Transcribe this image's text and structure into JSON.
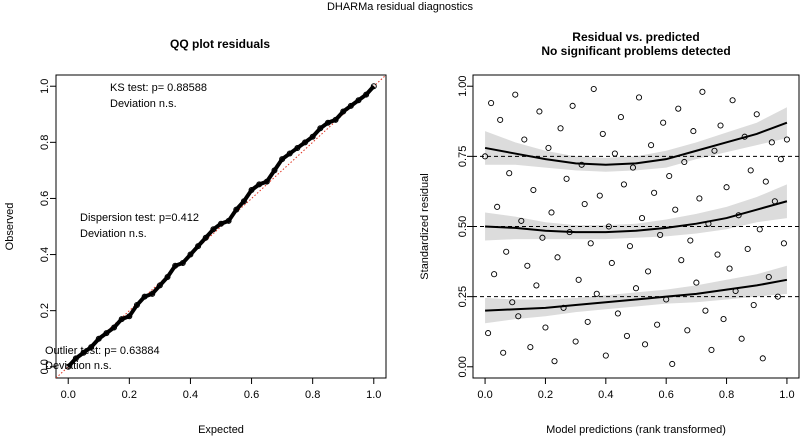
{
  "title": "DHARMa residual diagnostics",
  "chart_data": [
    {
      "type": "qq",
      "title": "QQ plot residuals",
      "xlabel": "Expected",
      "ylabel": "Observed",
      "color": "#000000",
      "reference_color": "#e0301e",
      "xlim": [
        -0.04,
        1.04
      ],
      "ylim": [
        -0.04,
        1.04
      ],
      "xticks": [
        {
          "value": 0,
          "label": "0.0"
        },
        {
          "value": 0.2,
          "label": "0.2"
        },
        {
          "value": 0.4,
          "label": "0.4"
        },
        {
          "value": 0.6,
          "label": "0.6"
        },
        {
          "value": 0.8,
          "label": "0.8"
        },
        {
          "value": 1,
          "label": "1.0"
        }
      ],
      "yticks": [
        {
          "value": 0,
          "label": "0.0"
        },
        {
          "value": 0.2,
          "label": "0.2"
        },
        {
          "value": 0.4,
          "label": "0.4"
        },
        {
          "value": 0.6,
          "label": "0.6"
        },
        {
          "value": 0.8,
          "label": "0.8"
        },
        {
          "value": 1,
          "label": "1.0"
        }
      ],
      "x": [
        0,
        0.025,
        0.05,
        0.075,
        0.1,
        0.125,
        0.15,
        0.175,
        0.2,
        0.225,
        0.25,
        0.275,
        0.3,
        0.325,
        0.35,
        0.375,
        0.4,
        0.425,
        0.45,
        0.475,
        0.5,
        0.525,
        0.55,
        0.575,
        0.6,
        0.625,
        0.65,
        0.675,
        0.7,
        0.725,
        0.75,
        0.775,
        0.8,
        0.825,
        0.85,
        0.875,
        0.9,
        0.925,
        0.95,
        0.975,
        1
      ],
      "y": [
        0,
        0.03,
        0.05,
        0.07,
        0.1,
        0.12,
        0.14,
        0.17,
        0.18,
        0.22,
        0.25,
        0.26,
        0.29,
        0.32,
        0.36,
        0.37,
        0.4,
        0.43,
        0.46,
        0.49,
        0.51,
        0.52,
        0.56,
        0.59,
        0.63,
        0.65,
        0.66,
        0.7,
        0.74,
        0.76,
        0.78,
        0.8,
        0.82,
        0.85,
        0.87,
        0.88,
        0.91,
        0.93,
        0.95,
        0.97,
        1
      ],
      "annotations": [
        "KS test: p= 0.88588",
        "Deviation n.s.",
        "Dispersion test: p=0.412",
        "Deviation n.s.",
        "Outlier test: p= 0.63884",
        "Deviation n.s."
      ]
    },
    {
      "type": "scatter",
      "title": "Residual vs. predicted",
      "subtitle": "No significant problems detected",
      "xlabel": "Model predictions (rank transformed)",
      "ylabel": "Standardized residual",
      "color": "#000000",
      "band_color": "#dcdcdc",
      "xlim": [
        -0.04,
        1.04
      ],
      "ylim": [
        -0.04,
        1.04
      ],
      "xticks": [
        {
          "value": 0,
          "label": "0.0"
        },
        {
          "value": 0.2,
          "label": "0.2"
        },
        {
          "value": 0.4,
          "label": "0.4"
        },
        {
          "value": 0.6,
          "label": "0.6"
        },
        {
          "value": 0.8,
          "label": "0.8"
        },
        {
          "value": 1,
          "label": "1.0"
        }
      ],
      "yticks": [
        {
          "value": 0,
          "label": "0.00"
        },
        {
          "value": 0.25,
          "label": "0.25"
        },
        {
          "value": 0.5,
          "label": "0.50"
        },
        {
          "value": 0.75,
          "label": "0.75"
        },
        {
          "value": 1,
          "label": "1.00"
        }
      ],
      "hlines": [
        0.25,
        0.5,
        0.75
      ],
      "x": [
        0,
        0.01,
        0.02,
        0.03,
        0.04,
        0.05,
        0.06,
        0.07,
        0.08,
        0.09,
        0.1,
        0.11,
        0.12,
        0.13,
        0.14,
        0.15,
        0.16,
        0.17,
        0.18,
        0.19,
        0.2,
        0.21,
        0.22,
        0.23,
        0.24,
        0.25,
        0.26,
        0.27,
        0.28,
        0.29,
        0.3,
        0.31,
        0.32,
        0.33,
        0.34,
        0.35,
        0.36,
        0.37,
        0.38,
        0.39,
        0.4,
        0.41,
        0.42,
        0.43,
        0.44,
        0.45,
        0.46,
        0.47,
        0.48,
        0.49,
        0.5,
        0.51,
        0.52,
        0.53,
        0.54,
        0.55,
        0.56,
        0.57,
        0.58,
        0.59,
        0.6,
        0.61,
        0.62,
        0.63,
        0.64,
        0.65,
        0.66,
        0.67,
        0.68,
        0.69,
        0.7,
        0.71,
        0.72,
        0.73,
        0.74,
        0.75,
        0.76,
        0.77,
        0.78,
        0.79,
        0.8,
        0.81,
        0.82,
        0.83,
        0.84,
        0.85,
        0.86,
        0.87,
        0.88,
        0.89,
        0.9,
        0.91,
        0.92,
        0.93,
        0.94,
        0.95,
        0.96,
        0.97,
        0.98,
        0.99,
        1
      ],
      "y": [
        0.75,
        0.12,
        0.94,
        0.33,
        0.57,
        0.88,
        0.05,
        0.41,
        0.69,
        0.23,
        0.97,
        0.18,
        0.52,
        0.81,
        0.36,
        0.07,
        0.63,
        0.29,
        0.91,
        0.46,
        0.14,
        0.78,
        0.55,
        0.02,
        0.39,
        0.85,
        0.21,
        0.67,
        0.48,
        0.93,
        0.09,
        0.31,
        0.72,
        0.58,
        0.16,
        0.44,
        0.99,
        0.26,
        0.61,
        0.83,
        0.04,
        0.5,
        0.37,
        0.76,
        0.19,
        0.89,
        0.65,
        0.11,
        0.43,
        0.71,
        0.28,
        0.96,
        0.53,
        0.08,
        0.34,
        0.79,
        0.62,
        0.15,
        0.47,
        0.87,
        0.24,
        0.68,
        0.01,
        0.56,
        0.92,
        0.38,
        0.73,
        0.13,
        0.45,
        0.84,
        0.3,
        0.6,
        0.98,
        0.2,
        0.51,
        0.06,
        0.77,
        0.4,
        0.86,
        0.17,
        0.64,
        0.35,
        0.95,
        0.27,
        0.54,
        0.1,
        0.82,
        0.42,
        0.7,
        0.22,
        0.9,
        0.49,
        0.03,
        0.66,
        0.32,
        0.8,
        0.59,
        0.25,
        0.74,
        0.44,
        0.81
      ],
      "quantile_lines": [
        {
          "x": [
            0,
            0.1,
            0.2,
            0.3,
            0.4,
            0.5,
            0.6,
            0.7,
            0.8,
            0.9,
            1
          ],
          "values": [
            0.2,
            0.205,
            0.21,
            0.22,
            0.23,
            0.24,
            0.25,
            0.26,
            0.275,
            0.29,
            0.31
          ],
          "lower": [
            0.155,
            0.17,
            0.18,
            0.195,
            0.205,
            0.215,
            0.225,
            0.23,
            0.24,
            0.25,
            0.26
          ],
          "upper": [
            0.245,
            0.24,
            0.24,
            0.245,
            0.255,
            0.265,
            0.275,
            0.29,
            0.31,
            0.33,
            0.36
          ]
        },
        {
          "x": [
            0,
            0.1,
            0.2,
            0.3,
            0.4,
            0.5,
            0.6,
            0.7,
            0.8,
            0.9,
            1
          ],
          "values": [
            0.5,
            0.495,
            0.485,
            0.48,
            0.48,
            0.485,
            0.495,
            0.51,
            0.53,
            0.56,
            0.59
          ],
          "lower": [
            0.45,
            0.455,
            0.455,
            0.455,
            0.455,
            0.46,
            0.465,
            0.475,
            0.49,
            0.515,
            0.53
          ],
          "upper": [
            0.55,
            0.535,
            0.515,
            0.505,
            0.505,
            0.51,
            0.525,
            0.545,
            0.57,
            0.605,
            0.65
          ]
        },
        {
          "x": [
            0,
            0.1,
            0.2,
            0.3,
            0.4,
            0.5,
            0.6,
            0.7,
            0.8,
            0.9,
            1
          ],
          "values": [
            0.78,
            0.76,
            0.74,
            0.725,
            0.72,
            0.725,
            0.74,
            0.77,
            0.8,
            0.83,
            0.87
          ],
          "lower": [
            0.72,
            0.72,
            0.71,
            0.7,
            0.695,
            0.7,
            0.71,
            0.74,
            0.765,
            0.79,
            0.815
          ],
          "upper": [
            0.84,
            0.8,
            0.77,
            0.75,
            0.745,
            0.75,
            0.77,
            0.8,
            0.835,
            0.87,
            0.925
          ]
        }
      ]
    }
  ]
}
